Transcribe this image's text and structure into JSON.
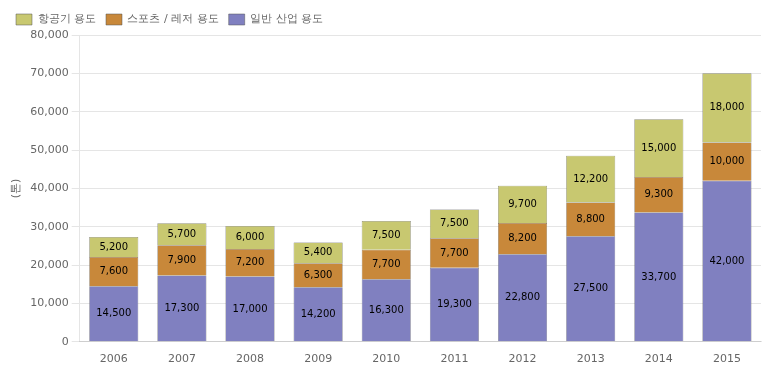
{
  "chart_data": {
    "type": "bar",
    "stacked": true,
    "ylabel": "(톤)",
    "categories": [
      "2006",
      "2007",
      "2008",
      "2009",
      "2010",
      "2011",
      "2012",
      "2013",
      "2014",
      "2015"
    ],
    "series": [
      {
        "name": "일반 산업 용도",
        "color": "#8080c0",
        "values": [
          14500,
          17300,
          17000,
          14200,
          16300,
          19300,
          22800,
          27500,
          33700,
          42000
        ],
        "value_labels": [
          "14,500",
          "17,300",
          "17,000",
          "14,200",
          "16,300",
          "19,300",
          "22,800",
          "27,500",
          "33,700",
          "42,000"
        ]
      },
      {
        "name": "스포츠 / 레저 용도",
        "color": "#c8883a",
        "values": [
          7600,
          7900,
          7200,
          6300,
          7700,
          7700,
          8200,
          8800,
          9300,
          10000
        ],
        "value_labels": [
          "7,600",
          "7,900",
          "7,200",
          "6,300",
          "7,700",
          "7,700",
          "8,200",
          "8,800",
          "9,300",
          "10,000"
        ]
      },
      {
        "name": "항공기 용도",
        "color": "#c8c870",
        "values": [
          5200,
          5700,
          6000,
          5400,
          7500,
          7500,
          9700,
          12200,
          15000,
          18000
        ],
        "value_labels": [
          "5,200",
          "5,700",
          "6,000",
          "5,400",
          "7,500",
          "7,500",
          "9,700",
          "12,200",
          "15,000",
          "18,000"
        ]
      }
    ],
    "ylim": [
      0,
      80000
    ],
    "yticks": [
      0,
      {
        "value": 10000,
        "label": "10,000"
      },
      {
        "value": 20000,
        "label": "20,000"
      },
      {
        "value": 30000,
        "label": "30,000"
      },
      {
        "value": 40000,
        "label": "40,000"
      },
      {
        "value": 50000,
        "label": "50,000"
      },
      {
        "value": 60000,
        "label": "60,000"
      },
      {
        "value": 70000,
        "label": "70,000"
      },
      {
        "value": 80000,
        "label": "80,000"
      }
    ],
    "grid": true,
    "legend": "upper left",
    "data_labels": true
  }
}
